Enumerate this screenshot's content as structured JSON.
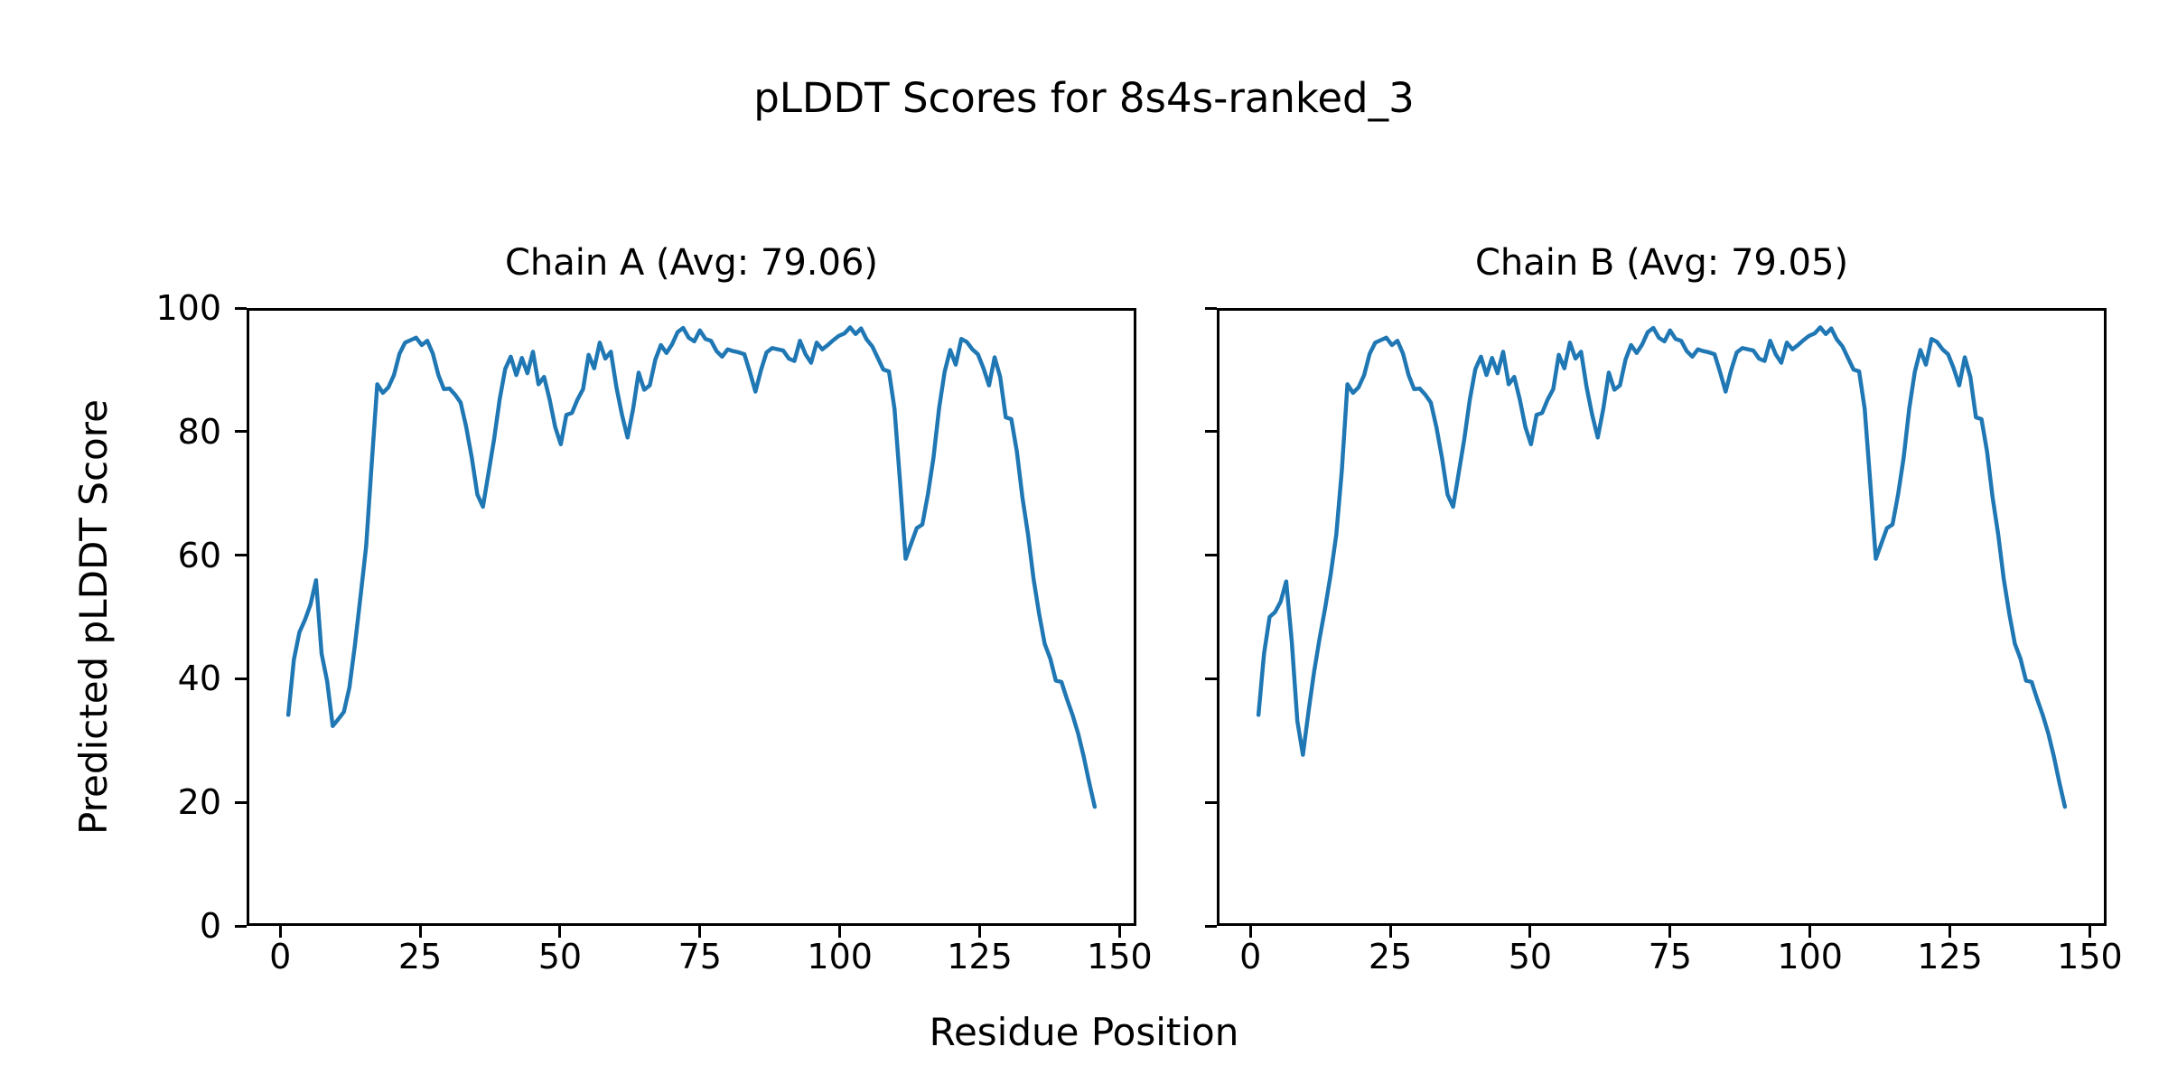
{
  "figure": {
    "suptitle": "pLDDT Scores for 8s4s-ranked_3",
    "xlabel": "Residue Position",
    "ylabel": "Predicted pLDDT Score"
  },
  "chart_data": {
    "type": "line",
    "line_color": "#1f77b4",
    "background_color": "#ffffff",
    "grid": false,
    "legend": "none",
    "x_start_residue": 1,
    "xlim": [
      -6,
      153
    ],
    "ylim": [
      0,
      100
    ],
    "x_ticks": [
      0,
      25,
      50,
      75,
      100,
      125,
      150
    ],
    "y_ticks": [
      0,
      20,
      40,
      60,
      80,
      100
    ],
    "subplots": [
      {
        "title": "Chain A (Avg: 79.06)",
        "series_name": "Chain A pLDDT",
        "average": 79.06,
        "values": [
          34,
          43,
          47.5,
          49.5,
          52,
          56,
          44,
          39.5,
          32.2,
          33.3,
          34.5,
          38.5,
          45.5,
          53.4,
          61.5,
          75,
          88,
          86.6,
          87.5,
          89.5,
          93,
          94.8,
          95.2,
          95.6,
          94.4,
          95.1,
          93,
          89.5,
          87.2,
          87.3,
          86.3,
          85,
          81,
          76,
          70,
          68,
          73.5,
          79,
          85.5,
          90.5,
          92.5,
          89.5,
          92.3,
          89.8,
          93.3,
          88,
          89.2,
          85.5,
          81,
          78.2,
          83,
          83.3,
          85.5,
          87.2,
          92.8,
          90.6,
          94.8,
          92.2,
          93.3,
          87.5,
          83,
          79.3,
          84,
          89.9,
          87.1,
          87.8,
          92,
          94.4,
          93.1,
          94.5,
          96.5,
          97.2,
          95.6,
          95,
          96.8,
          95.4,
          95.1,
          93.4,
          92.5,
          93.7,
          93.4,
          93.2,
          92.9,
          90,
          86.8,
          90.3,
          93.2,
          93.9,
          93.7,
          93.5,
          92.2,
          91.8,
          95.1,
          92.9,
          91.5,
          94.8,
          93.7,
          94.4,
          95.2,
          95.9,
          96.3,
          97.3,
          96.2,
          97.1,
          95.3,
          94.2,
          92.3,
          90.4,
          90.1,
          84,
          72,
          59.5,
          62,
          64.5,
          65.1,
          70,
          76,
          84,
          90,
          93.6,
          91.2,
          95.4,
          94.9,
          93.7,
          92.9,
          90.6,
          87.8,
          92.4,
          89.2,
          82.6,
          82.3,
          77,
          69.5,
          63.5,
          56.2,
          50.5,
          45.6,
          43.2,
          39.6,
          39.4,
          36.6,
          34,
          31,
          27.3,
          23,
          19
        ]
      },
      {
        "title": "Chain B (Avg: 79.05)",
        "series_name": "Chain B pLDDT",
        "average": 79.05,
        "values": [
          34,
          44,
          50,
          50.8,
          52.5,
          55.8,
          46,
          33,
          27.5,
          34.5,
          41,
          46.5,
          51.5,
          57,
          63.5,
          74,
          88,
          86.6,
          87.5,
          89.5,
          93,
          94.8,
          95.2,
          95.6,
          94.4,
          95.1,
          93,
          89.5,
          87.2,
          87.3,
          86.3,
          85,
          81,
          76,
          70,
          68,
          73.5,
          79,
          85.5,
          90.5,
          92.5,
          89.5,
          92.3,
          89.8,
          93.3,
          88,
          89.2,
          85.5,
          81,
          78.2,
          83,
          83.3,
          85.5,
          87.2,
          92.8,
          90.6,
          94.8,
          92.2,
          93.3,
          87.5,
          83,
          79.3,
          84,
          89.9,
          87.1,
          87.8,
          92,
          94.4,
          93.1,
          94.5,
          96.5,
          97.2,
          95.6,
          95,
          96.8,
          95.4,
          95.1,
          93.4,
          92.5,
          93.7,
          93.4,
          93.2,
          92.9,
          90,
          86.8,
          90.3,
          93.2,
          93.9,
          93.7,
          93.5,
          92.2,
          91.8,
          95.1,
          92.9,
          91.5,
          94.8,
          93.7,
          94.4,
          95.2,
          95.9,
          96.3,
          97.3,
          96.2,
          97.1,
          95.3,
          94.2,
          92.3,
          90.4,
          90.1,
          84,
          72,
          59.5,
          62,
          64.5,
          65.1,
          70,
          76,
          84,
          90,
          93.6,
          91.2,
          95.4,
          94.9,
          93.7,
          92.9,
          90.6,
          87.8,
          92.4,
          89.2,
          82.6,
          82.3,
          77,
          69.5,
          63.5,
          56.2,
          50.5,
          45.6,
          43.2,
          39.6,
          39.4,
          36.6,
          34,
          31,
          27.3,
          23,
          19
        ]
      }
    ]
  }
}
